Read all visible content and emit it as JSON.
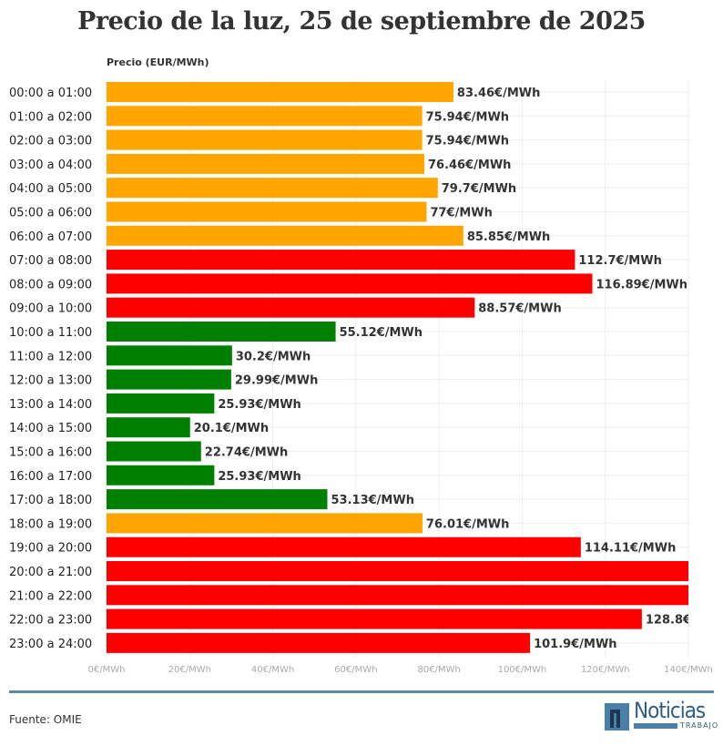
{
  "chart_data": {
    "type": "bar",
    "orientation": "horizontal",
    "title": "Precio de la luz, 25 de septiembre de 2025",
    "ylabel": "Precio (EUR/MWh)",
    "xlim": [
      0,
      140
    ],
    "grid": true,
    "x_ticks": [
      "0€/MWh",
      "20€/MWh",
      "40€/MWh",
      "60€/MWh",
      "80€/MWh",
      "100€/MWh",
      "120€/MWh",
      "140€/MWh"
    ],
    "categories": [
      "00:00 a 01:00",
      "01:00 a 02:00",
      "02:00 a 03:00",
      "03:00 a 04:00",
      "04:00 a 05:00",
      "05:00 a 06:00",
      "06:00 a 07:00",
      "07:00 a 08:00",
      "08:00 a 09:00",
      "09:00 a 10:00",
      "10:00 a 11:00",
      "11:00 a 12:00",
      "12:00 a 13:00",
      "13:00 a 14:00",
      "14:00 a 15:00",
      "15:00 a 16:00",
      "16:00 a 17:00",
      "17:00 a 18:00",
      "18:00 a 19:00",
      "19:00 a 20:00",
      "20:00 a 21:00",
      "21:00 a 22:00",
      "22:00 a 23:00",
      "23:00 a 24:00"
    ],
    "values": [
      83.46,
      75.94,
      75.94,
      76.46,
      79.7,
      77,
      85.85,
      112.7,
      116.89,
      88.57,
      55.12,
      30.2,
      29.99,
      25.93,
      20.1,
      22.74,
      25.93,
      53.13,
      76.01,
      114.11,
      140,
      140,
      128.8,
      101.9
    ],
    "labels": [
      "83.46€/MWh",
      "75.94€/MWh",
      "75.94€/MWh",
      "76.46€/MWh",
      "79.7€/MWh",
      "77€/MWh",
      "85.85€/MWh",
      "112.7€/MWh",
      "116.89€/MWh",
      "88.57€/MWh",
      "55.12€/MWh",
      "30.2€/MWh",
      "29.99€/MWh",
      "25.93€/MWh",
      "20.1€/MWh",
      "22.74€/MWh",
      "25.93€/MWh",
      "53.13€/MWh",
      "76.01€/MWh",
      "114.11€/MWh",
      "",
      "",
      "128.8€",
      "101.9€/MWh"
    ],
    "colors": [
      "orange",
      "orange",
      "orange",
      "orange",
      "orange",
      "orange",
      "orange",
      "red",
      "red",
      "red",
      "green",
      "green",
      "green",
      "green",
      "green",
      "green",
      "green",
      "green",
      "orange",
      "red",
      "red",
      "red",
      "red",
      "red"
    ],
    "palette": {
      "orange": "#FFA500",
      "red": "#FF0000",
      "green": "#008000"
    }
  },
  "footer": {
    "source": "Fuente: OMIE",
    "logo_text": "Noticias",
    "logo_sub": "TRABAJO"
  }
}
